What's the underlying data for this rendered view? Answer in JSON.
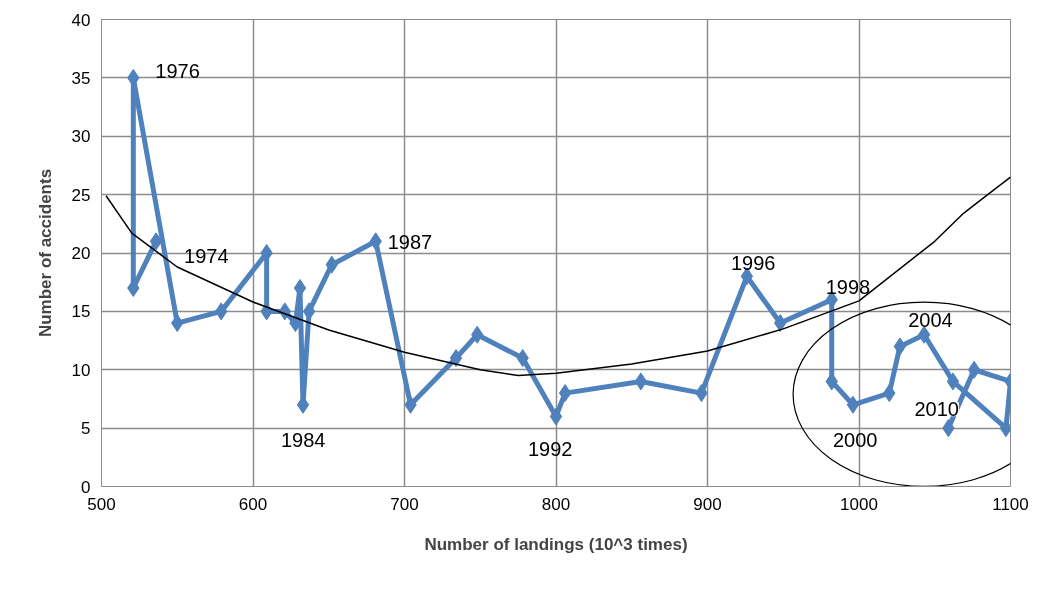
{
  "chart_data": {
    "type": "line",
    "xlabel": "Number of landings (10^3 times)",
    "ylabel": "Number of accidents",
    "xlim": [
      500,
      1100
    ],
    "ylim": [
      0,
      40
    ],
    "xticks": [
      500,
      600,
      700,
      800,
      900,
      1000,
      1100
    ],
    "yticks": [
      0,
      5,
      10,
      15,
      20,
      25,
      30,
      35,
      40
    ],
    "grid": true,
    "marker": "diamond",
    "series": [
      {
        "color": "#4f81bd",
        "x": [
          536,
          521,
          521,
          550,
          579,
          609,
          609,
          621,
          628,
          631,
          633,
          637,
          652,
          681,
          704,
          734,
          748,
          778,
          800,
          806,
          856,
          896,
          926,
          948,
          982,
          982,
          996,
          1020,
          1027,
          1043,
          1062,
          1097,
          1100,
          1076,
          1059
        ],
        "values": [
          21,
          17,
          35,
          14,
          15,
          20,
          15,
          15,
          14,
          17,
          7,
          15,
          19,
          21,
          7,
          11,
          13,
          11,
          6,
          8,
          9,
          8,
          18,
          14,
          16,
          9,
          7,
          8,
          12,
          13,
          9,
          5,
          9,
          10,
          5
        ]
      },
      {
        "color": "#000000",
        "marker": "none",
        "x": [
          503,
          520,
          550,
          600,
          650,
          700,
          750,
          775,
          800,
          850,
          900,
          950,
          1000,
          1050,
          1069,
          1080,
          1100
        ],
        "values": [
          24.9,
          21.7,
          18.8,
          15.8,
          13.4,
          11.5,
          10,
          9.5,
          9.7,
          10.5,
          11.6,
          13.5,
          15.9,
          21,
          23.4,
          24.5,
          26.5
        ]
      }
    ],
    "annotations": [
      {
        "text": "1976",
        "x": 521,
        "y": 35
      },
      {
        "text": "1974",
        "x": 536,
        "y": 21
      },
      {
        "text": "1984",
        "x": 633,
        "y": 7
      },
      {
        "text": "1987",
        "x": 681,
        "y": 21
      },
      {
        "text": "1992",
        "x": 800,
        "y": 6
      },
      {
        "text": "1996",
        "x": 926,
        "y": 18
      },
      {
        "text": "1998",
        "x": 982,
        "y": 16
      },
      {
        "text": "2000",
        "x": 996,
        "y": 7
      },
      {
        "text": "2004",
        "x": 1043,
        "y": 13
      },
      {
        "text": "2010",
        "x": 1059,
        "y": 5
      }
    ]
  }
}
